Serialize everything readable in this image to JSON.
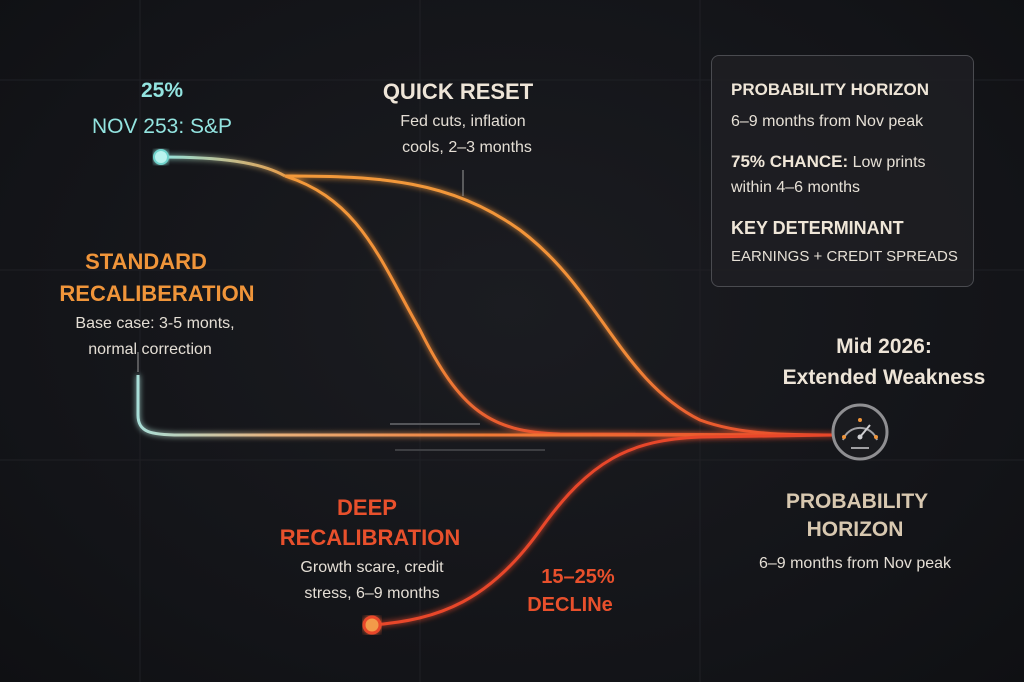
{
  "start": {
    "percent": "25%",
    "label": "NOV 253: S&P"
  },
  "quick_reset": {
    "title": "QUICK RESET",
    "line1": "Fed cuts, inflation",
    "line2": "cools, 2–3 months"
  },
  "standard": {
    "title1": "STANDARD",
    "title2": "RECALIBERATION",
    "line1": "Base case: 3-5 monts,",
    "line2": "normal correction"
  },
  "deep": {
    "title1": "DEEP",
    "title2": "RECALIBRATION",
    "line1": "Growth scare, credit",
    "line2": "stress, 6–9 months",
    "decline1": "15–25%",
    "decline2": "DECLINe"
  },
  "endpoint": {
    "title1": "Mid 2026:",
    "title2": "Extended Weakness",
    "icon": "gauge-icon"
  },
  "horizon": {
    "title1": "PROBABILITY",
    "title2": "HORIZON",
    "detail": "6–9 months from Nov peak"
  },
  "card": {
    "heading": "PROBABILITY HORIZON",
    "horizon_text": "6–9 months from Nov peak",
    "chance_label": "75% CHANCE:",
    "chance_text1": "Low prints",
    "chance_text2": "within 4–6 months",
    "key_heading": "KEY DETERMINANT",
    "key_text": "EARNINGS + CREDIT SPREADS"
  },
  "colors": {
    "cyan": "#93e4e0",
    "orange": "#f0953a",
    "red": "#e8502c"
  }
}
